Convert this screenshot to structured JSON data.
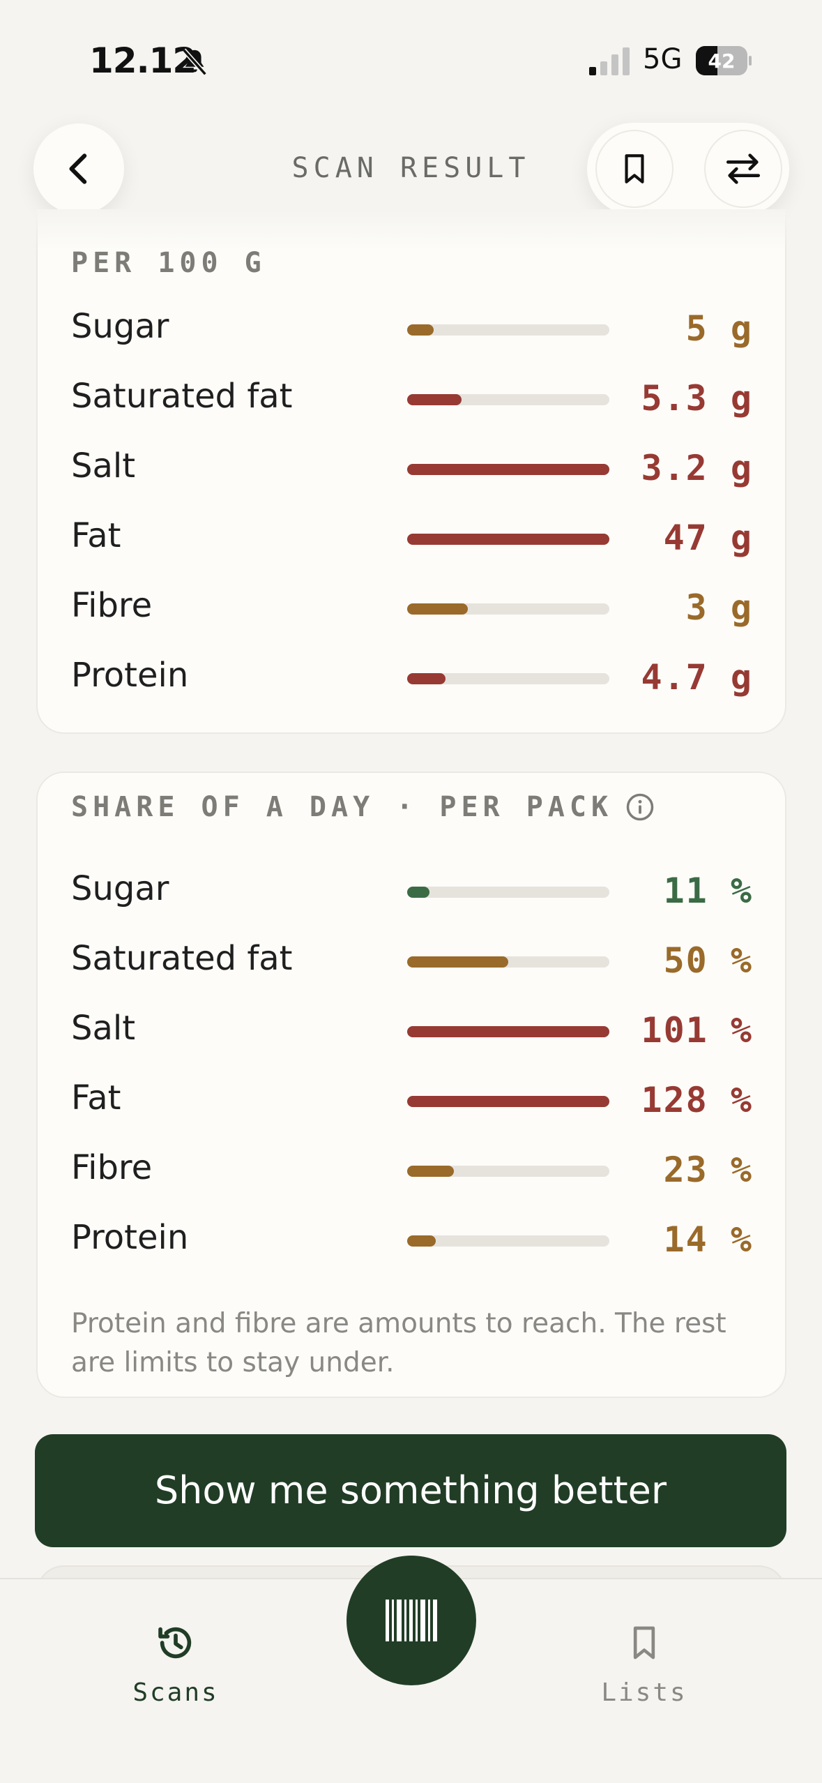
{
  "status_bar": {
    "time": "12.12",
    "network": "5G",
    "battery": "42"
  },
  "header": {
    "title": "SCAN RESULT"
  },
  "per100": {
    "heading": "PER 100 G",
    "rows": [
      {
        "label": "Sugar",
        "value": "5",
        "unit": "g",
        "fill": 0.13,
        "color": "#9a6a2a"
      },
      {
        "label": "Saturated fat",
        "value": "5.3",
        "unit": "g",
        "fill": 0.27,
        "color": "#973a33"
      },
      {
        "label": "Salt",
        "value": "3.2",
        "unit": "g",
        "fill": 1.0,
        "color": "#973a33"
      },
      {
        "label": "Fat",
        "value": "47",
        "unit": "g",
        "fill": 1.0,
        "color": "#973a33"
      },
      {
        "label": "Fibre",
        "value": "3",
        "unit": "g",
        "fill": 0.3,
        "color": "#9a6a2a"
      },
      {
        "label": "Protein",
        "value": "4.7",
        "unit": "g",
        "fill": 0.19,
        "color": "#973a33"
      }
    ]
  },
  "share": {
    "heading": "SHARE OF A DAY · PER PACK",
    "rows": [
      {
        "label": "Sugar",
        "value": "11",
        "unit": "%",
        "fill": 0.11,
        "color": "#3b6b45"
      },
      {
        "label": "Saturated fat",
        "value": "50",
        "unit": "%",
        "fill": 0.5,
        "color": "#9a6a2a"
      },
      {
        "label": "Salt",
        "value": "101",
        "unit": "%",
        "fill": 1.0,
        "color": "#973a33"
      },
      {
        "label": "Fat",
        "value": "128",
        "unit": "%",
        "fill": 1.0,
        "color": "#973a33"
      },
      {
        "label": "Fibre",
        "value": "23",
        "unit": "%",
        "fill": 0.23,
        "color": "#9a6a2a"
      },
      {
        "label": "Protein",
        "value": "14",
        "unit": "%",
        "fill": 0.14,
        "color": "#9a6a2a"
      }
    ],
    "note": "Protein and fibre are amounts to reach. The rest are limits to stay under."
  },
  "cta": {
    "label": "Show me something better"
  },
  "tabbar": {
    "scans_label": "Scans",
    "lists_label": "Lists",
    "scans_color": "#213d26",
    "lists_color": "#8a8883"
  },
  "icons": {
    "back": "chevron-left-icon",
    "bookmark": "bookmark-icon",
    "compare": "swap-arrows-icon",
    "info": "info-icon",
    "scans": "history-icon",
    "scan": "barcode-icon",
    "lists": "bookmark-icon"
  }
}
